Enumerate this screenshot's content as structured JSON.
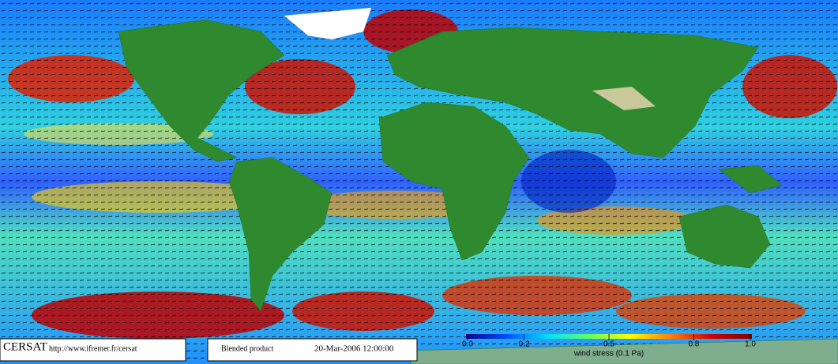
{
  "footer": {
    "logo": "CERSAT",
    "url": "http://www.ifremer.fr/cersat",
    "product": "Blended product",
    "date": "20-Mar-2006 12:00:00"
  },
  "colorbar": {
    "label": "wind stress (0.1 Pa)",
    "lim": [
      0,
      1
    ],
    "ticks": [
      {
        "value": 0,
        "label": "0.0"
      },
      0.2,
      0.5,
      0.8,
      {
        "value": 1,
        "label": "1.0"
      }
    ],
    "colors": [
      "#00008b",
      "#0050ff",
      "#00e0ff",
      "#60ff60",
      "#ffff00",
      "#ff8000",
      "#d00000",
      "#800000"
    ]
  }
}
